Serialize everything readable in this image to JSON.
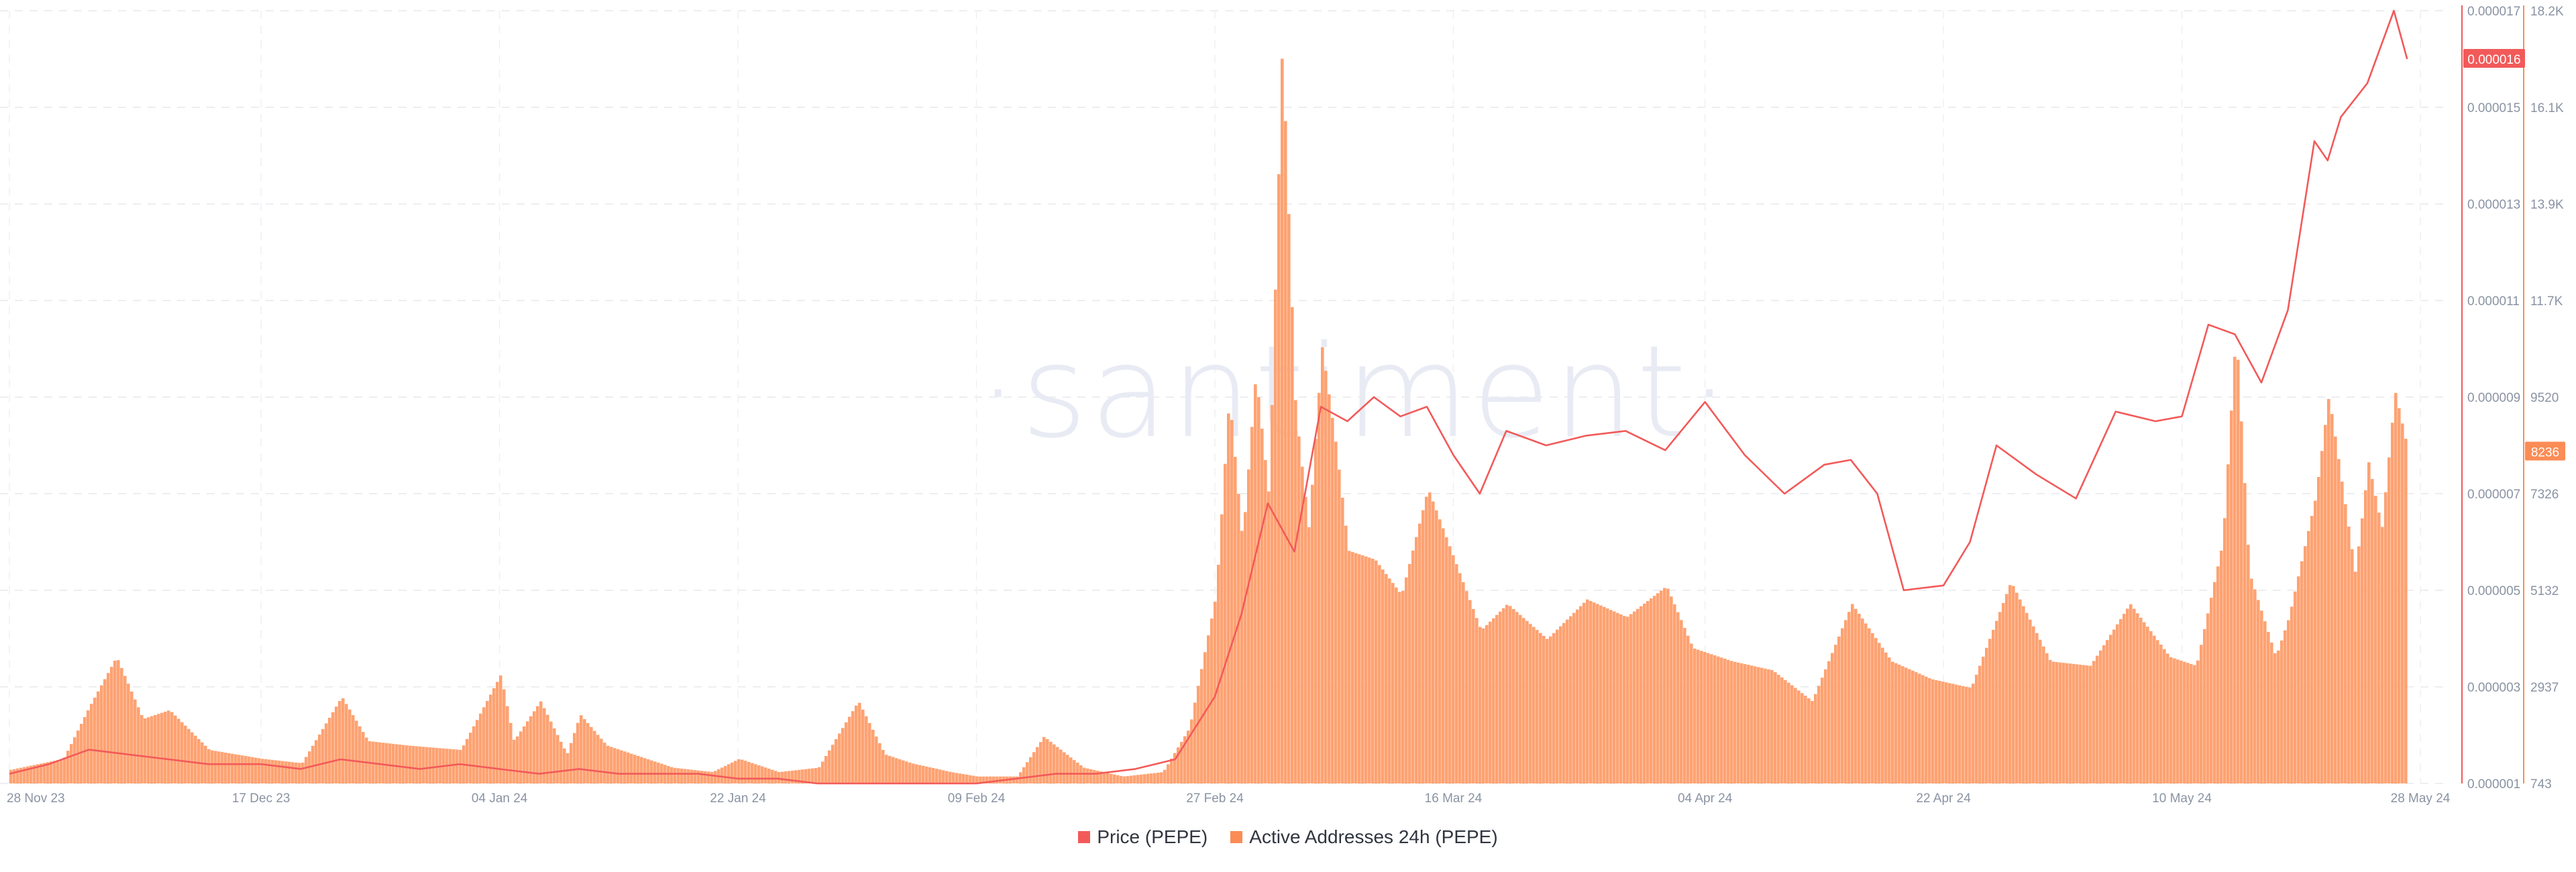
{
  "chart_data": {
    "type": "line",
    "watermark": "·santiment·",
    "x_ticks": [
      "28 Nov 23",
      "17 Dec 23",
      "04 Jan 24",
      "22 Jan 24",
      "09 Feb 24",
      "27 Feb 24",
      "16 Mar 24",
      "04 Apr 24",
      "22 Apr 24",
      "10 May 24",
      "28 May 24"
    ],
    "y_left_ticks": [
      "0.000017",
      "0.000015",
      "0.000013",
      "0.000011",
      "0.000009",
      "0.000007",
      "0.000005",
      "0.000003",
      "0.000001"
    ],
    "y_right_ticks": [
      "18.2K",
      "16.1K",
      "13.9K",
      "11.7K",
      "9520",
      "7326",
      "5132",
      "2937",
      "743"
    ],
    "price_ylim": [
      1e-06,
      1.7e-05
    ],
    "addresses_ylim": [
      743,
      18200
    ],
    "grid": true,
    "legend_position": "bottom-center",
    "current_price_label": "0.000016",
    "current_addresses_label": "8236",
    "series": [
      {
        "name": "Price (PEPE)",
        "axis": "left",
        "color": "#f25a5a",
        "x": [
          "28 Nov 23",
          "01 Dec 23",
          "04 Dec 23",
          "07 Dec 23",
          "10 Dec 23",
          "13 Dec 23",
          "17 Dec 23",
          "20 Dec 23",
          "23 Dec 23",
          "26 Dec 23",
          "29 Dec 23",
          "01 Jan 24",
          "04 Jan 24",
          "07 Jan 24",
          "10 Jan 24",
          "13 Jan 24",
          "16 Jan 24",
          "19 Jan 24",
          "22 Jan 24",
          "25 Jan 24",
          "28 Jan 24",
          "31 Jan 24",
          "03 Feb 24",
          "06 Feb 24",
          "09 Feb 24",
          "12 Feb 24",
          "15 Feb 24",
          "18 Feb 24",
          "21 Feb 24",
          "24 Feb 24",
          "27 Feb 24",
          "29 Feb 24",
          "02 Mar 24",
          "04 Mar 24",
          "06 Mar 24",
          "08 Mar 24",
          "10 Mar 24",
          "12 Mar 24",
          "14 Mar 24",
          "16 Mar 24",
          "18 Mar 24",
          "20 Mar 24",
          "23 Mar 24",
          "26 Mar 24",
          "29 Mar 24",
          "01 Apr 24",
          "04 Apr 24",
          "07 Apr 24",
          "10 Apr 24",
          "13 Apr 24",
          "15 Apr 24",
          "17 Apr 24",
          "19 Apr 24",
          "22 Apr 24",
          "24 Apr 24",
          "26 Apr 24",
          "29 Apr 24",
          "02 May 24",
          "05 May 24",
          "08 May 24",
          "10 May 24",
          "12 May 24",
          "14 May 24",
          "16 May 24",
          "18 May 24",
          "20 May 24",
          "21 May 24",
          "22 May 24",
          "24 May 24",
          "26 May 24",
          "27 May 24"
        ],
        "values": [
          1.2e-06,
          1.4e-06,
          1.7e-06,
          1.6e-06,
          1.5e-06,
          1.4e-06,
          1.4e-06,
          1.3e-06,
          1.5e-06,
          1.4e-06,
          1.3e-06,
          1.4e-06,
          1.3e-06,
          1.2e-06,
          1.3e-06,
          1.2e-06,
          1.2e-06,
          1.2e-06,
          1.1e-06,
          1.1e-06,
          1e-06,
          1e-06,
          1e-06,
          1e-06,
          1e-06,
          1.1e-06,
          1.2e-06,
          1.2e-06,
          1.3e-06,
          1.5e-06,
          2.8e-06,
          4.5e-06,
          6.8e-06,
          5.8e-06,
          8.8e-06,
          8.5e-06,
          9e-06,
          8.6e-06,
          8.8e-06,
          7.8e-06,
          7e-06,
          8.3e-06,
          8e-06,
          8.2e-06,
          8.3e-06,
          7.9e-06,
          8.9e-06,
          7.8e-06,
          7e-06,
          7.6e-06,
          7.7e-06,
          7e-06,
          5e-06,
          5.1e-06,
          6e-06,
          8e-06,
          7.4e-06,
          6.9e-06,
          8.7e-06,
          8.5e-06,
          8.6e-06,
          1.05e-05,
          1.03e-05,
          9.3e-06,
          1.08e-05,
          1.43e-05,
          1.39e-05,
          1.48e-05,
          1.55e-05,
          1.7e-05,
          1.6e-05
        ]
      },
      {
        "name": "Active Addresses 24h (PEPE)",
        "axis": "right",
        "color": "#fda272",
        "x": [
          "28 Nov 23",
          "02 Dec 23",
          "04 Dec 23",
          "06 Dec 23",
          "08 Dec 23",
          "10 Dec 23",
          "13 Dec 23",
          "17 Dec 23",
          "20 Dec 23",
          "23 Dec 23",
          "25 Dec 23",
          "28 Dec 23",
          "01 Jan 24",
          "04 Jan 24",
          "05 Jan 24",
          "07 Jan 24",
          "09 Jan 24",
          "10 Jan 24",
          "12 Jan 24",
          "14 Jan 24",
          "17 Jan 24",
          "20 Jan 24",
          "22 Jan 24",
          "25 Jan 24",
          "28 Jan 24",
          "31 Jan 24",
          "02 Feb 24",
          "04 Feb 24",
          "07 Feb 24",
          "09 Feb 24",
          "12 Feb 24",
          "14 Feb 24",
          "17 Feb 24",
          "20 Feb 24",
          "23 Feb 24",
          "25 Feb 24",
          "27 Feb 24",
          "28 Feb 24",
          "29 Feb 24",
          "01 Mar 24",
          "02 Mar 24",
          "03 Mar 24",
          "04 Mar 24",
          "05 Mar 24",
          "06 Mar 24",
          "07 Mar 24",
          "08 Mar 24",
          "10 Mar 24",
          "12 Mar 24",
          "14 Mar 24",
          "16 Mar 24",
          "18 Mar 24",
          "20 Mar 24",
          "23 Mar 24",
          "26 Mar 24",
          "29 Mar 24",
          "01 Apr 24",
          "03 Apr 24",
          "06 Apr 24",
          "09 Apr 24",
          "12 Apr 24",
          "15 Apr 24",
          "18 Apr 24",
          "21 Apr 24",
          "24 Apr 24",
          "27 Apr 24",
          "30 Apr 24",
          "03 May 24",
          "06 May 24",
          "09 May 24",
          "11 May 24",
          "13 May 24",
          "14 May 24",
          "15 May 24",
          "17 May 24",
          "18 May 24",
          "20 May 24",
          "21 May 24",
          "23 May 24",
          "24 May 24",
          "25 May 24",
          "26 May 24",
          "27 May 24"
        ],
        "values": [
          1050,
          1300,
          2500,
          3600,
          2200,
          2400,
          1500,
          1300,
          1200,
          2700,
          1700,
          1600,
          1500,
          3200,
          1700,
          2600,
          1400,
          2300,
          1600,
          1400,
          1100,
          1000,
          1300,
          1000,
          1100,
          2600,
          1400,
          1200,
          1000,
          900,
          900,
          1800,
          1100,
          900,
          1000,
          2000,
          5000,
          9500,
          6200,
          10000,
          7200,
          17500,
          9200,
          6500,
          10600,
          8500,
          6000,
          5800,
          5000,
          7400,
          5800,
          4200,
          4800,
          4000,
          4900,
          4500,
          5200,
          3800,
          3500,
          3300,
          2600,
          4800,
          3500,
          3100,
          2900,
          5300,
          3500,
          3400,
          4800,
          3600,
          3400,
          6200,
          11000,
          5500,
          3600,
          4500,
          7200,
          9520,
          5500,
          8000,
          6500,
          9600,
          8236
        ]
      }
    ]
  },
  "legend": {
    "price_label": "Price (PEPE)",
    "addresses_label": "Active Addresses 24h (PEPE)",
    "price_color": "#f25a5a",
    "addresses_color": "#fb8c55"
  }
}
